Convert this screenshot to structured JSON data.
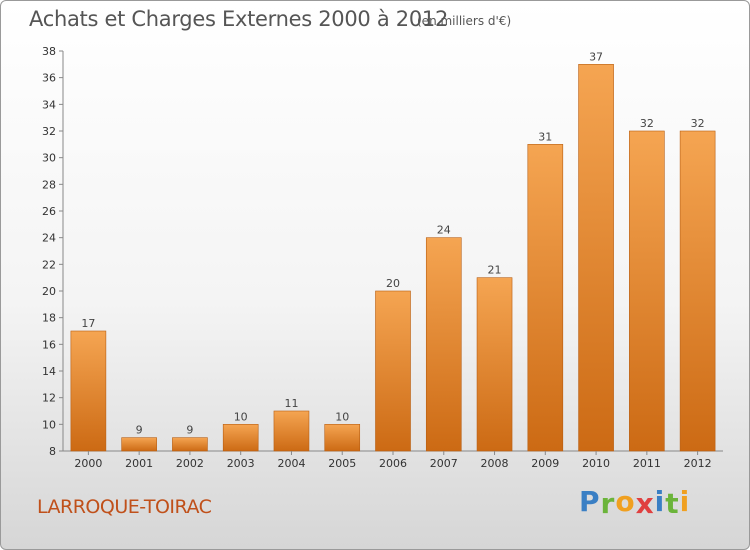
{
  "chart_data": {
    "type": "bar",
    "title": "Achats et Charges Externes 2000 à 2012",
    "subtitle": "(en milliers d'€)",
    "categories": [
      "2000",
      "2001",
      "2002",
      "2003",
      "2004",
      "2005",
      "2006",
      "2007",
      "2008",
      "2009",
      "2010",
      "2011",
      "2012"
    ],
    "values": [
      17,
      9,
      9,
      10,
      11,
      10,
      20,
      24,
      21,
      31,
      37,
      32,
      32
    ],
    "ylim": [
      8,
      38
    ],
    "yticks": [
      8,
      10,
      12,
      14,
      16,
      18,
      20,
      22,
      24,
      26,
      28,
      30,
      32,
      34,
      36,
      38
    ],
    "grid": false,
    "colors": {
      "bar_top": "#f5a552",
      "bar_bottom": "#cc6a14",
      "bar_edge": "#b85e12"
    }
  },
  "location": "LARROQUE-TOIRAC",
  "logo": {
    "letters": [
      "P",
      "r",
      "o",
      "x",
      "i",
      "t",
      "i"
    ],
    "colors": [
      "#3a7fc4",
      "#6bb43a",
      "#f0a020",
      "#e04040",
      "#3a7fc4",
      "#6bb43a",
      "#f0a020"
    ]
  }
}
